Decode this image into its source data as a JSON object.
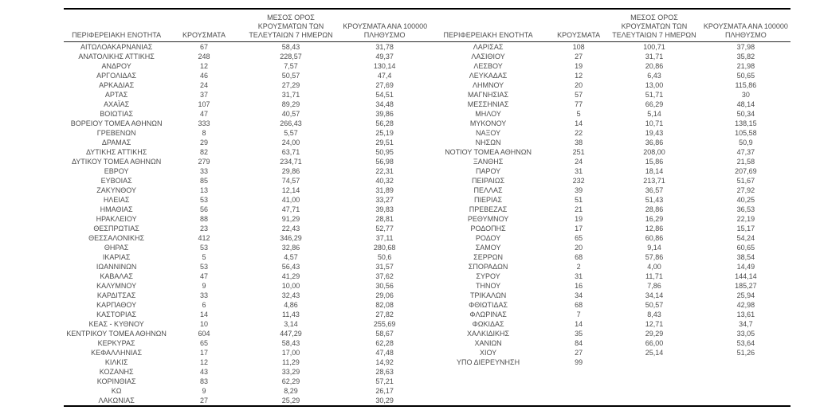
{
  "page": {
    "background_color": "#ffffff",
    "text_color": "#4d4d4d",
    "rule_color": "#000000"
  },
  "table": {
    "column_headers": {
      "region": "ΠΕΡΙΦΕΡΕΙΑΚΗ ΕΝΟΤΗΤΑ",
      "cases": "ΚΡΟΥΣΜΑΤΑ",
      "avg7_lines": [
        "ΜΕΣΟΣ ΟΡΟΣ",
        "ΚΡΟΥΣΜΑΤΩΝ ΤΩΝ",
        "ΤΕΛΕΥΤΑΙΩΝ 7 ΗΜΕΡΩΝ"
      ],
      "per100k_lines": [
        "ΚΡΟΥΣΜΑΤΑ ΑΝΑ 100000",
        "ΠΛΗΘΥΣΜΟ"
      ]
    },
    "left_rows": [
      [
        "ΑΙΤΩΛΟΑΚΑΡΝΑΝΙΑΣ",
        "67",
        "58,43",
        "31,78"
      ],
      [
        "ΑΝΑΤΟΛΙΚΗΣ ΑΤΤΙΚΗΣ",
        "248",
        "228,57",
        "49,37"
      ],
      [
        "ΑΝΔΡΟΥ",
        "12",
        "7,57",
        "130,14"
      ],
      [
        "ΑΡΓΟΛΙΔΑΣ",
        "46",
        "50,57",
        "47,4"
      ],
      [
        "ΑΡΚΑΔΙΑΣ",
        "24",
        "27,29",
        "27,69"
      ],
      [
        "ΑΡΤΑΣ",
        "37",
        "31,71",
        "54,51"
      ],
      [
        "ΑΧΑΪΑΣ",
        "107",
        "89,29",
        "34,48"
      ],
      [
        "ΒΟΙΩΤΙΑΣ",
        "47",
        "40,57",
        "39,86"
      ],
      [
        "ΒΟΡΕΙΟΥ ΤΟΜΕΑ ΑΘΗΝΩΝ",
        "333",
        "266,43",
        "56,28"
      ],
      [
        "ΓΡΕΒΕΝΩΝ",
        "8",
        "5,57",
        "25,19"
      ],
      [
        "ΔΡΑΜΑΣ",
        "29",
        "24,00",
        "29,51"
      ],
      [
        "ΔΥΤΙΚΗΣ ΑΤΤΙΚΗΣ",
        "82",
        "63,71",
        "50,95"
      ],
      [
        "ΔΥΤΙΚΟΥ ΤΟΜΕΑ ΑΘΗΝΩΝ",
        "279",
        "234,71",
        "56,98"
      ],
      [
        "ΕΒΡΟΥ",
        "33",
        "29,86",
        "22,31"
      ],
      [
        "ΕΥΒΟΙΑΣ",
        "85",
        "74,57",
        "40,32"
      ],
      [
        "ΖΑΚΥΝΘΟΥ",
        "13",
        "12,14",
        "31,89"
      ],
      [
        "ΗΛΕΙΑΣ",
        "53",
        "41,00",
        "33,27"
      ],
      [
        "ΗΜΑΘΙΑΣ",
        "56",
        "47,71",
        "39,83"
      ],
      [
        "ΗΡΑΚΛΕΙΟΥ",
        "88",
        "91,29",
        "28,81"
      ],
      [
        "ΘΕΣΠΡΩΤΙΑΣ",
        "23",
        "22,43",
        "52,77"
      ],
      [
        "ΘΕΣΣΑΛΟΝΙΚΗΣ",
        "412",
        "346,29",
        "37,11"
      ],
      [
        "ΘΗΡΑΣ",
        "53",
        "32,86",
        "280,68"
      ],
      [
        "ΙΚΑΡΙΑΣ",
        "5",
        "4,57",
        "50,6"
      ],
      [
        "ΙΩΑΝΝΙΝΩΝ",
        "53",
        "56,43",
        "31,57"
      ],
      [
        "ΚΑΒΑΛΑΣ",
        "47",
        "41,29",
        "37,62"
      ],
      [
        "ΚΑΛΥΜΝΟΥ",
        "9",
        "10,00",
        "30,56"
      ],
      [
        "ΚΑΡΔΙΤΣΑΣ",
        "33",
        "32,43",
        "29,06"
      ],
      [
        "ΚΑΡΠΑΘΟΥ",
        "6",
        "4,86",
        "82,08"
      ],
      [
        "ΚΑΣΤΟΡΙΑΣ",
        "14",
        "11,43",
        "27,82"
      ],
      [
        "ΚΕΑΣ - ΚΥΘΝΟΥ",
        "10",
        "3,14",
        "255,69"
      ],
      [
        "ΚΕΝΤΡΙΚΟΥ ΤΟΜΕΑ ΑΘΗΝΩΝ",
        "604",
        "447,29",
        "58,67"
      ],
      [
        "ΚΕΡΚΥΡΑΣ",
        "65",
        "58,43",
        "62,28"
      ],
      [
        "ΚΕΦΑΛΛΗΝΙΑΣ",
        "17",
        "17,00",
        "47,48"
      ],
      [
        "ΚΙΛΚΙΣ",
        "12",
        "11,29",
        "14,92"
      ],
      [
        "ΚΟΖΑΝΗΣ",
        "43",
        "33,29",
        "28,63"
      ],
      [
        "ΚΟΡΙΝΘΙΑΣ",
        "83",
        "62,29",
        "57,21"
      ],
      [
        "ΚΩ",
        "9",
        "8,29",
        "26,17"
      ],
      [
        "ΛΑΚΩΝΙΑΣ",
        "27",
        "25,29",
        "30,29"
      ]
    ],
    "right_rows": [
      [
        "ΛΑΡΙΣΑΣ",
        "108",
        "100,71",
        "37,98"
      ],
      [
        "ΛΑΣΙΘΙΟΥ",
        "27",
        "31,71",
        "35,82"
      ],
      [
        "ΛΕΣΒΟΥ",
        "19",
        "20,86",
        "21,98"
      ],
      [
        "ΛΕΥΚΑΔΑΣ",
        "12",
        "6,43",
        "50,65"
      ],
      [
        "ΛΗΜΝΟΥ",
        "20",
        "13,00",
        "115,86"
      ],
      [
        "ΜΑΓΝΗΣΙΑΣ",
        "57",
        "51,71",
        "30"
      ],
      [
        "ΜΕΣΣΗΝΙΑΣ",
        "77",
        "66,29",
        "48,14"
      ],
      [
        "ΜΗΛΟΥ",
        "5",
        "5,14",
        "50,34"
      ],
      [
        "ΜΥΚΟΝΟΥ",
        "14",
        "10,71",
        "138,15"
      ],
      [
        "ΝΑΞΟΥ",
        "22",
        "19,43",
        "105,58"
      ],
      [
        "ΝΗΣΩΝ",
        "38",
        "36,86",
        "50,9"
      ],
      [
        "ΝΟΤΙΟΥ ΤΟΜΕΑ ΑΘΗΝΩΝ",
        "251",
        "208,00",
        "47,37"
      ],
      [
        "ΞΑΝΘΗΣ",
        "24",
        "15,86",
        "21,58"
      ],
      [
        "ΠΑΡΟΥ",
        "31",
        "18,14",
        "207,69"
      ],
      [
        "ΠΕΙΡΑΙΩΣ",
        "232",
        "213,71",
        "51,67"
      ],
      [
        "ΠΕΛΛΑΣ",
        "39",
        "36,57",
        "27,92"
      ],
      [
        "ΠΙΕΡΙΑΣ",
        "51",
        "51,43",
        "40,25"
      ],
      [
        "ΠΡΕΒΕΖΑΣ",
        "21",
        "28,86",
        "36,53"
      ],
      [
        "ΡΕΘΥΜΝΟΥ",
        "19",
        "16,29",
        "22,19"
      ],
      [
        "ΡΟΔΟΠΗΣ",
        "17",
        "12,86",
        "15,17"
      ],
      [
        "ΡΟΔΟΥ",
        "65",
        "60,86",
        "54,24"
      ],
      [
        "ΣΑΜΟΥ",
        "20",
        "9,14",
        "60,65"
      ],
      [
        "ΣΕΡΡΩΝ",
        "68",
        "57,86",
        "38,54"
      ],
      [
        "ΣΠΟΡΑΔΩΝ",
        "2",
        "4,00",
        "14,49"
      ],
      [
        "ΣΥΡΟΥ",
        "31",
        "11,71",
        "144,14"
      ],
      [
        "ΤΗΝΟΥ",
        "16",
        "7,86",
        "185,27"
      ],
      [
        "ΤΡΙΚΑΛΩΝ",
        "34",
        "34,14",
        "25,94"
      ],
      [
        "ΦΘΙΩΤΙΔΑΣ",
        "68",
        "50,57",
        "42,98"
      ],
      [
        "ΦΛΩΡΙΝΑΣ",
        "7",
        "8,43",
        "13,61"
      ],
      [
        "ΦΩΚΙΔΑΣ",
        "14",
        "12,71",
        "34,7"
      ],
      [
        "ΧΑΛΚΙΔΙΚΗΣ",
        "35",
        "29,29",
        "33,05"
      ],
      [
        "ΧΑΝΙΩΝ",
        "84",
        "66,00",
        "53,64"
      ],
      [
        "ΧΙΟΥ",
        "27",
        "25,14",
        "51,26"
      ],
      [
        "ΥΠΟ ΔΙΕΡΕΥΝΗΣΗ",
        "99",
        "",
        ""
      ]
    ]
  }
}
